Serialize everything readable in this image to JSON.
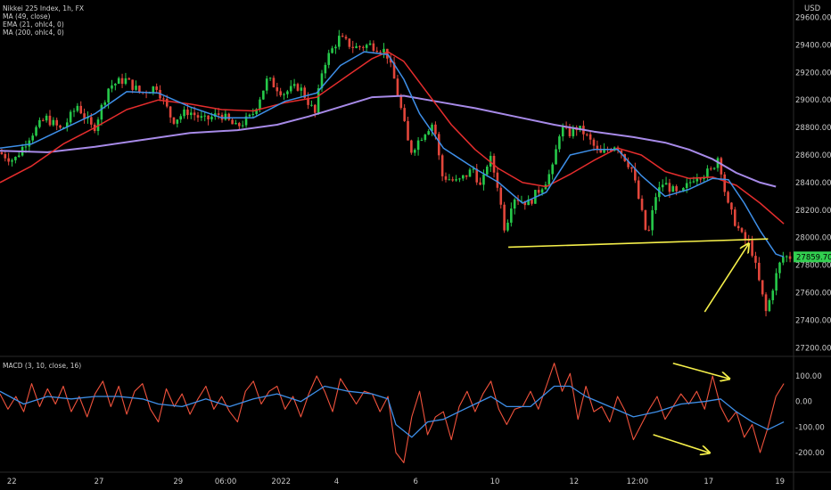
{
  "header": {
    "title": "Nikkei 225 Index, 1h, FX",
    "currency": "USD"
  },
  "legend": {
    "ma49": "MA (49, close)",
    "ema21": "EMA (21, ohlc4, 0)",
    "ma200": "MA (200, ohlc4, 0)",
    "macd": "MACD (3, 10, close, 16)"
  },
  "colors": {
    "background": "#000000",
    "up_candle": "#26c94a",
    "down_candle": "#e2463b",
    "ema21": "#3e8fe8",
    "ma49": "#e52d2d",
    "ma200": "#a78ae8",
    "macd_line": "#f0523c",
    "signal_line": "#3e8fe8",
    "annotation": "#f5ef4a",
    "price_tag": "#32d050"
  },
  "last_price": "27859.70",
  "chart_data": [
    {
      "type": "candlestick",
      "name": "price",
      "price_axis": {
        "ticks": [
          "29600.00",
          "29400.00",
          "29200.00",
          "29000.00",
          "28800.00",
          "28600.00",
          "28400.00",
          "28200.00",
          "28000.00",
          "27800.00",
          "27600.00",
          "27400.00",
          "27200.00"
        ],
        "ylim": [
          27150,
          29700
        ]
      },
      "x_ticks": [
        "22",
        "27",
        "29",
        "06:00",
        "2022",
        "4",
        "6",
        "10",
        "12",
        "12:00",
        "17",
        "19"
      ],
      "x_range": [
        0,
        100
      ],
      "x_tick_positions": [
        1.5,
        12.5,
        22.5,
        28.5,
        35.5,
        42.5,
        52.5,
        62.5,
        72.5,
        80.5,
        89.5,
        98.5
      ],
      "price_path": [
        [
          0,
          28620
        ],
        [
          2,
          28560
        ],
        [
          4,
          28740
        ],
        [
          6,
          28870
        ],
        [
          8,
          28780
        ],
        [
          10,
          28960
        ],
        [
          12,
          28780
        ],
        [
          14,
          29100
        ],
        [
          16,
          29150
        ],
        [
          18,
          29050
        ],
        [
          20,
          29100
        ],
        [
          22,
          28850
        ],
        [
          24,
          28920
        ],
        [
          26,
          28850
        ],
        [
          28,
          28900
        ],
        [
          30,
          28800
        ],
        [
          32,
          28880
        ],
        [
          34,
          29150
        ],
        [
          36,
          29050
        ],
        [
          38,
          29100
        ],
        [
          40,
          28900
        ],
        [
          41,
          29250
        ],
        [
          43,
          29450
        ],
        [
          45,
          29380
        ],
        [
          47,
          29400
        ],
        [
          48,
          29380
        ],
        [
          49,
          29350
        ],
        [
          50,
          29150
        ],
        [
          51,
          28900
        ],
        [
          52,
          28620
        ],
        [
          54,
          28780
        ],
        [
          55,
          28840
        ],
        [
          56,
          28450
        ],
        [
          58,
          28400
        ],
        [
          60,
          28500
        ],
        [
          61,
          28350
        ],
        [
          62,
          28600
        ],
        [
          63,
          28400
        ],
        [
          64,
          28050
        ],
        [
          65,
          28300
        ],
        [
          67,
          28250
        ],
        [
          69,
          28400
        ],
        [
          70,
          28500
        ],
        [
          71,
          28800
        ],
        [
          72,
          28750
        ],
        [
          73,
          28800
        ],
        [
          74,
          28760
        ],
        [
          76,
          28600
        ],
        [
          78,
          28680
        ],
        [
          80,
          28500
        ],
        [
          81,
          28250
        ],
        [
          82,
          27990
        ],
        [
          83,
          28300
        ],
        [
          84,
          28400
        ],
        [
          86,
          28300
        ],
        [
          88,
          28450
        ],
        [
          90,
          28480
        ],
        [
          91,
          28600
        ],
        [
          92,
          28250
        ],
        [
          93,
          28120
        ],
        [
          94,
          28000
        ],
        [
          95,
          27950
        ],
        [
          96,
          27700
        ],
        [
          97,
          27450
        ],
        [
          98,
          27680
        ],
        [
          99,
          27859.7
        ]
      ],
      "ema21_path": [
        [
          0,
          28650
        ],
        [
          4,
          28680
        ],
        [
          8,
          28790
        ],
        [
          12,
          28900
        ],
        [
          16,
          29060
        ],
        [
          20,
          29050
        ],
        [
          24,
          28950
        ],
        [
          28,
          28870
        ],
        [
          32,
          28870
        ],
        [
          36,
          28990
        ],
        [
          40,
          29050
        ],
        [
          43,
          29250
        ],
        [
          46,
          29350
        ],
        [
          49,
          29330
        ],
        [
          51,
          29150
        ],
        [
          53,
          28900
        ],
        [
          56,
          28650
        ],
        [
          60,
          28500
        ],
        [
          63,
          28400
        ],
        [
          66,
          28250
        ],
        [
          69,
          28330
        ],
        [
          72,
          28600
        ],
        [
          75,
          28640
        ],
        [
          78,
          28640
        ],
        [
          81,
          28450
        ],
        [
          84,
          28300
        ],
        [
          87,
          28350
        ],
        [
          90,
          28430
        ],
        [
          92,
          28420
        ],
        [
          94,
          28250
        ],
        [
          96,
          28050
        ],
        [
          98,
          27880
        ],
        [
          99,
          27860
        ]
      ],
      "ma49_path": [
        [
          0,
          28400
        ],
        [
          4,
          28520
        ],
        [
          8,
          28680
        ],
        [
          12,
          28800
        ],
        [
          16,
          28930
        ],
        [
          20,
          29000
        ],
        [
          24,
          28970
        ],
        [
          28,
          28930
        ],
        [
          32,
          28920
        ],
        [
          36,
          28980
        ],
        [
          40,
          29020
        ],
        [
          44,
          29180
        ],
        [
          47,
          29300
        ],
        [
          49,
          29350
        ],
        [
          51,
          29280
        ],
        [
          54,
          29050
        ],
        [
          57,
          28820
        ],
        [
          60,
          28640
        ],
        [
          63,
          28500
        ],
        [
          66,
          28400
        ],
        [
          69,
          28370
        ],
        [
          72,
          28460
        ],
        [
          75,
          28560
        ],
        [
          78,
          28650
        ],
        [
          81,
          28600
        ],
        [
          84,
          28480
        ],
        [
          87,
          28430
        ],
        [
          90,
          28440
        ],
        [
          93,
          28380
        ],
        [
          96,
          28250
        ],
        [
          99,
          28100
        ]
      ],
      "ma200_path": [
        [
          0,
          28630
        ],
        [
          6,
          28620
        ],
        [
          12,
          28660
        ],
        [
          18,
          28710
        ],
        [
          24,
          28760
        ],
        [
          30,
          28780
        ],
        [
          35,
          28820
        ],
        [
          39,
          28880
        ],
        [
          43,
          28950
        ],
        [
          47,
          29020
        ],
        [
          51,
          29030
        ],
        [
          55,
          28990
        ],
        [
          60,
          28940
        ],
        [
          65,
          28880
        ],
        [
          70,
          28820
        ],
        [
          75,
          28770
        ],
        [
          80,
          28730
        ],
        [
          84,
          28690
        ],
        [
          87,
          28640
        ],
        [
          90,
          28570
        ],
        [
          93,
          28470
        ],
        [
          96,
          28400
        ],
        [
          98,
          28370
        ]
      ],
      "annotations": [
        {
          "kind": "support-line",
          "from": [
            64.2,
            27930
          ],
          "to": [
            97,
            27990
          ]
        },
        {
          "kind": "arrow",
          "from": [
            89,
            27460
          ],
          "to": [
            94.5,
            27950
          ]
        }
      ]
    },
    {
      "type": "line",
      "name": "macd",
      "ylim": [
        -270,
        170
      ],
      "y_ticks": [
        "100.00",
        "0.00",
        "-100.00",
        "-200.00"
      ],
      "y_tick_values": [
        100,
        0,
        -100,
        -200
      ],
      "macd_path": [
        [
          0,
          30
        ],
        [
          1,
          -30
        ],
        [
          2,
          20
        ],
        [
          3,
          -40
        ],
        [
          4,
          70
        ],
        [
          5,
          -20
        ],
        [
          6,
          50
        ],
        [
          7,
          -10
        ],
        [
          8,
          60
        ],
        [
          9,
          -40
        ],
        [
          10,
          20
        ],
        [
          11,
          -60
        ],
        [
          12,
          30
        ],
        [
          13,
          80
        ],
        [
          14,
          -20
        ],
        [
          15,
          60
        ],
        [
          16,
          -50
        ],
        [
          17,
          40
        ],
        [
          18,
          70
        ],
        [
          19,
          -30
        ],
        [
          20,
          -80
        ],
        [
          21,
          50
        ],
        [
          22,
          -20
        ],
        [
          23,
          30
        ],
        [
          24,
          -50
        ],
        [
          25,
          10
        ],
        [
          26,
          60
        ],
        [
          27,
          -30
        ],
        [
          28,
          20
        ],
        [
          29,
          -40
        ],
        [
          30,
          -80
        ],
        [
          31,
          40
        ],
        [
          32,
          80
        ],
        [
          33,
          -10
        ],
        [
          34,
          40
        ],
        [
          35,
          60
        ],
        [
          36,
          -30
        ],
        [
          37,
          20
        ],
        [
          38,
          -60
        ],
        [
          39,
          30
        ],
        [
          40,
          100
        ],
        [
          41,
          40
        ],
        [
          42,
          -40
        ],
        [
          43,
          90
        ],
        [
          44,
          40
        ],
        [
          45,
          -10
        ],
        [
          46,
          40
        ],
        [
          47,
          30
        ],
        [
          48,
          -40
        ],
        [
          49,
          20
        ],
        [
          50,
          -200
        ],
        [
          51,
          -240
        ],
        [
          52,
          -60
        ],
        [
          53,
          40
        ],
        [
          54,
          -130
        ],
        [
          55,
          -60
        ],
        [
          56,
          -40
        ],
        [
          57,
          -150
        ],
        [
          58,
          -20
        ],
        [
          59,
          40
        ],
        [
          60,
          -40
        ],
        [
          61,
          30
        ],
        [
          62,
          80
        ],
        [
          63,
          -30
        ],
        [
          64,
          -90
        ],
        [
          65,
          -30
        ],
        [
          66,
          -20
        ],
        [
          67,
          40
        ],
        [
          68,
          -30
        ],
        [
          69,
          60
        ],
        [
          70,
          150
        ],
        [
          71,
          40
        ],
        [
          72,
          110
        ],
        [
          73,
          -70
        ],
        [
          74,
          60
        ],
        [
          75,
          -40
        ],
        [
          76,
          -20
        ],
        [
          77,
          -80
        ],
        [
          78,
          20
        ],
        [
          79,
          -40
        ],
        [
          80,
          -150
        ],
        [
          81,
          -90
        ],
        [
          82,
          -30
        ],
        [
          83,
          20
        ],
        [
          84,
          -70
        ],
        [
          85,
          -20
        ],
        [
          86,
          30
        ],
        [
          87,
          -10
        ],
        [
          88,
          40
        ],
        [
          89,
          -30
        ],
        [
          90,
          100
        ],
        [
          91,
          -20
        ],
        [
          92,
          -80
        ],
        [
          93,
          -40
        ],
        [
          94,
          -140
        ],
        [
          95,
          -90
        ],
        [
          96,
          -200
        ],
        [
          97,
          -100
        ],
        [
          98,
          20
        ],
        [
          99,
          70
        ]
      ],
      "signal_path": [
        [
          0,
          40
        ],
        [
          3,
          -10
        ],
        [
          6,
          20
        ],
        [
          9,
          10
        ],
        [
          12,
          20
        ],
        [
          15,
          20
        ],
        [
          18,
          10
        ],
        [
          20,
          -10
        ],
        [
          23,
          -20
        ],
        [
          26,
          10
        ],
        [
          29,
          -20
        ],
        [
          32,
          10
        ],
        [
          35,
          30
        ],
        [
          38,
          0
        ],
        [
          41,
          60
        ],
        [
          44,
          40
        ],
        [
          47,
          30
        ],
        [
          49,
          10
        ],
        [
          50,
          -90
        ],
        [
          52,
          -140
        ],
        [
          54,
          -80
        ],
        [
          56,
          -70
        ],
        [
          58,
          -40
        ],
        [
          60,
          -10
        ],
        [
          62,
          20
        ],
        [
          64,
          -20
        ],
        [
          67,
          -20
        ],
        [
          70,
          60
        ],
        [
          72,
          60
        ],
        [
          74,
          20
        ],
        [
          77,
          -20
        ],
        [
          80,
          -60
        ],
        [
          83,
          -40
        ],
        [
          86,
          -10
        ],
        [
          89,
          0
        ],
        [
          91,
          10
        ],
        [
          93,
          -40
        ],
        [
          95,
          -80
        ],
        [
          97,
          -110
        ],
        [
          99,
          -80
        ]
      ],
      "annotations": [
        {
          "kind": "arrow",
          "from": [
            85,
            150
          ],
          "to": [
            92,
            90
          ]
        },
        {
          "kind": "arrow",
          "from": [
            82.5,
            -130
          ],
          "to": [
            89.5,
            -200
          ]
        }
      ]
    }
  ]
}
